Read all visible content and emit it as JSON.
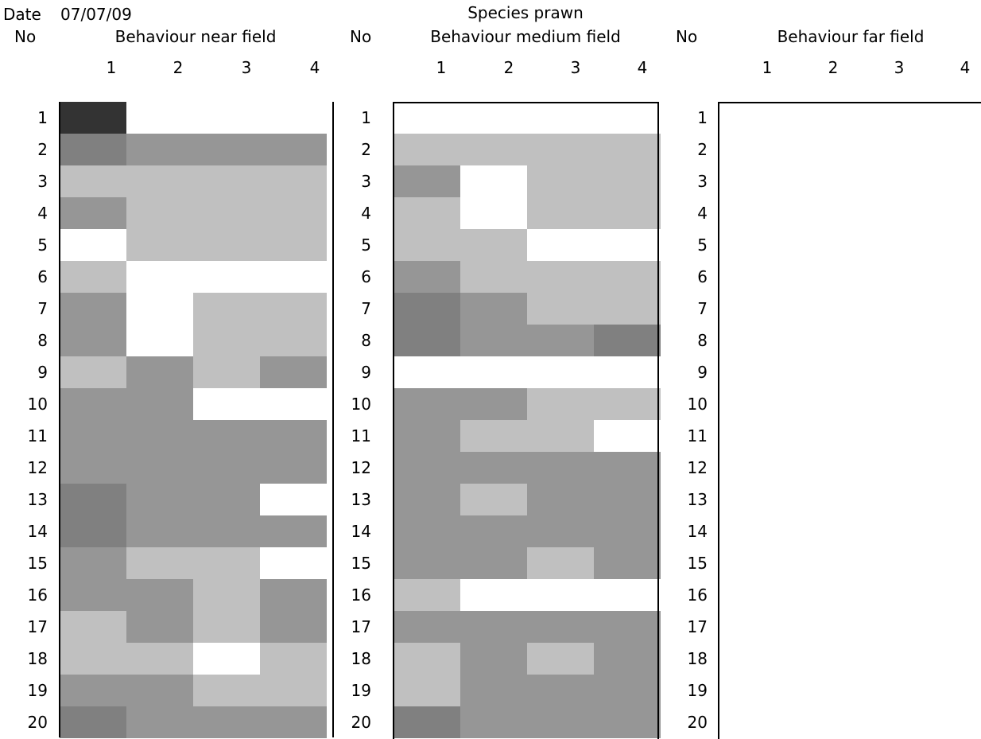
{
  "date_label": "Date",
  "date_value": "07/07/09",
  "species_label": "Species prawn",
  "no_label": "No",
  "rows": [
    "1",
    "2",
    "3",
    "4",
    "5",
    "6",
    "7",
    "8",
    "9",
    "10",
    "11",
    "12",
    "13",
    "14",
    "15",
    "16",
    "17",
    "18",
    "19",
    "20"
  ],
  "colors": {
    "0": "#ffffff",
    "1": "#c0c0c0",
    "2": "#969696",
    "3": "#808080",
    "4": "#333333"
  },
  "chart_data": {
    "type": "heatmap",
    "x_categories": [
      "1",
      "2",
      "3",
      "4"
    ],
    "y_categories": [
      "1",
      "2",
      "3",
      "4",
      "5",
      "6",
      "7",
      "8",
      "9",
      "10",
      "11",
      "12",
      "13",
      "14",
      "15",
      "16",
      "17",
      "18",
      "19",
      "20"
    ],
    "value_legend": "0 = white, 1 = light grey, 2 = mid grey, 3 = dark grey, 4 = near black (shade levels, no printed legend)",
    "panels": [
      {
        "title": "Behaviour near field",
        "values": [
          [
            4,
            0,
            0,
            0
          ],
          [
            3,
            2,
            2,
            2
          ],
          [
            1,
            1,
            1,
            1
          ],
          [
            2,
            1,
            1,
            1
          ],
          [
            0,
            1,
            1,
            1
          ],
          [
            1,
            0,
            0,
            0
          ],
          [
            2,
            0,
            1,
            1
          ],
          [
            2,
            0,
            1,
            1
          ],
          [
            1,
            2,
            1,
            2
          ],
          [
            2,
            2,
            0,
            0
          ],
          [
            2,
            2,
            2,
            2
          ],
          [
            2,
            2,
            2,
            2
          ],
          [
            3,
            2,
            2,
            0
          ],
          [
            3,
            2,
            2,
            2
          ],
          [
            2,
            1,
            1,
            0
          ],
          [
            2,
            2,
            1,
            2
          ],
          [
            1,
            2,
            1,
            2
          ],
          [
            1,
            1,
            0,
            1
          ],
          [
            2,
            2,
            1,
            1
          ],
          [
            3,
            2,
            2,
            2
          ]
        ]
      },
      {
        "title": "Behaviour medium field",
        "values": [
          [
            0,
            0,
            0,
            0
          ],
          [
            1,
            1,
            1,
            1
          ],
          [
            2,
            0,
            1,
            1
          ],
          [
            1,
            0,
            1,
            1
          ],
          [
            1,
            1,
            0,
            0
          ],
          [
            2,
            1,
            1,
            1
          ],
          [
            3,
            2,
            1,
            1
          ],
          [
            3,
            2,
            2,
            3
          ],
          [
            0,
            0,
            0,
            0
          ],
          [
            2,
            2,
            1,
            1
          ],
          [
            2,
            1,
            1,
            0
          ],
          [
            2,
            2,
            2,
            2
          ],
          [
            2,
            1,
            2,
            2
          ],
          [
            2,
            2,
            2,
            2
          ],
          [
            2,
            2,
            1,
            2
          ],
          [
            1,
            0,
            0,
            0
          ],
          [
            2,
            2,
            2,
            2
          ],
          [
            1,
            2,
            1,
            2
          ],
          [
            1,
            2,
            2,
            2
          ],
          [
            3,
            2,
            2,
            2
          ]
        ]
      },
      {
        "title": "Behaviour far field",
        "values": []
      }
    ]
  }
}
